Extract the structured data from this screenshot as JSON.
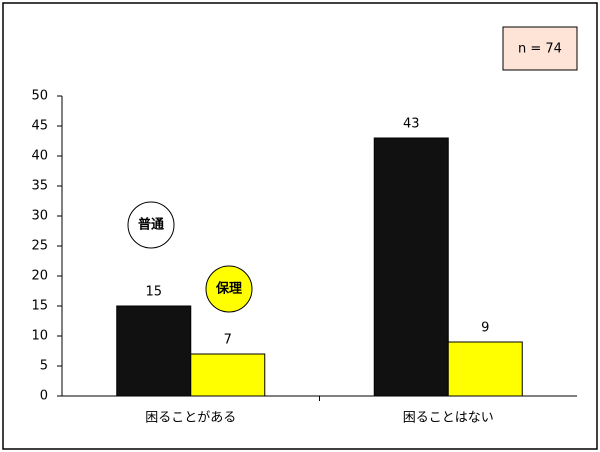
{
  "chart_data": {
    "type": "bar",
    "annotation": "n = 74",
    "categories": [
      "困ることがある",
      "困ることはない"
    ],
    "series": [
      {
        "name": "普通",
        "color": "#111111",
        "values": [
          15,
          43
        ]
      },
      {
        "name": "保理",
        "color": "#ffff00",
        "values": [
          7,
          9
        ]
      }
    ],
    "ylim": [
      0,
      50
    ],
    "yticks": [
      0,
      5,
      10,
      15,
      20,
      25,
      30,
      35,
      40,
      45,
      50
    ]
  }
}
